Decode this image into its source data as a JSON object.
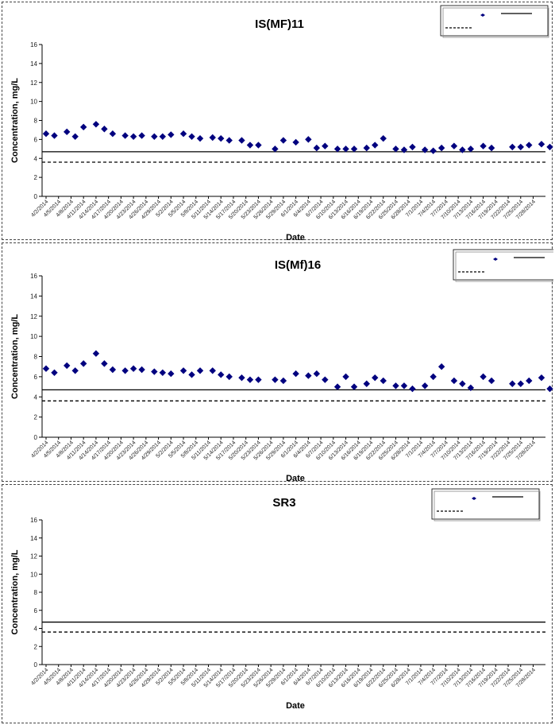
{
  "chart_data": [
    {
      "type": "scatter",
      "title": "IS(MF)11",
      "xlabel": "Date",
      "ylabel": "Concentration, mg/L",
      "ylim": [
        0,
        16
      ],
      "yticks": [
        "0",
        "2",
        "4",
        "6",
        "8",
        "10",
        "12",
        "14",
        "16"
      ],
      "xticks": [
        "4/2/2014",
        "4/5/2014",
        "4/8/2014",
        "4/11/2014",
        "4/14/2014",
        "4/17/2014",
        "4/20/2014",
        "4/23/2014",
        "4/26/2014",
        "4/29/2014",
        "5/2/2014",
        "5/5/2014",
        "5/8/2014",
        "5/11/2014",
        "5/14/2014",
        "5/17/2014",
        "5/20/2014",
        "5/23/2014",
        "5/26/2014",
        "5/29/2014",
        "6/1/2014",
        "6/4/2014",
        "6/7/2014",
        "6/10/2014",
        "6/13/2014",
        "6/16/2014",
        "6/19/2014",
        "6/22/2014",
        "6/25/2014",
        "6/28/2014",
        "7/1/2014",
        "7/4/2014",
        "7/7/2014",
        "7/10/2014",
        "7/13/2014",
        "7/16/2014",
        "7/19/2014",
        "7/22/2014",
        "7/25/2014",
        "7/28/2014"
      ],
      "grid": false,
      "legend_position": "top-right",
      "marker_color": "#00007F",
      "reference_lines": [
        {
          "style": "solid",
          "value": 4.7
        },
        {
          "style": "dashed",
          "value": 3.6
        }
      ],
      "points": [
        {
          "x": "4/2/2014",
          "y": 6.6
        },
        {
          "x": "4/4/2014",
          "y": 6.4
        },
        {
          "x": "4/7/2014",
          "y": 6.8
        },
        {
          "x": "4/9/2014",
          "y": 6.3
        },
        {
          "x": "4/11/2014",
          "y": 7.3
        },
        {
          "x": "4/14/2014",
          "y": 7.6
        },
        {
          "x": "4/16/2014",
          "y": 7.1
        },
        {
          "x": "4/18/2014",
          "y": 6.6
        },
        {
          "x": "4/21/2014",
          "y": 6.4
        },
        {
          "x": "4/23/2014",
          "y": 6.3
        },
        {
          "x": "4/25/2014",
          "y": 6.4
        },
        {
          "x": "4/28/2014",
          "y": 6.3
        },
        {
          "x": "4/30/2014",
          "y": 6.3
        },
        {
          "x": "5/2/2014",
          "y": 6.5
        },
        {
          "x": "5/5/2014",
          "y": 6.6
        },
        {
          "x": "5/7/2014",
          "y": 6.3
        },
        {
          "x": "5/9/2014",
          "y": 6.1
        },
        {
          "x": "5/12/2014",
          "y": 6.2
        },
        {
          "x": "5/14/2014",
          "y": 6.1
        },
        {
          "x": "5/16/2014",
          "y": 5.9
        },
        {
          "x": "5/19/2014",
          "y": 5.9
        },
        {
          "x": "5/21/2014",
          "y": 5.4
        },
        {
          "x": "5/23/2014",
          "y": 5.4
        },
        {
          "x": "5/27/2014",
          "y": 5.0
        },
        {
          "x": "5/29/2014",
          "y": 5.9
        },
        {
          "x": "6/1/2014",
          "y": 5.7
        },
        {
          "x": "6/4/2014",
          "y": 6.0
        },
        {
          "x": "6/6/2014",
          "y": 5.1
        },
        {
          "x": "6/8/2014",
          "y": 5.3
        },
        {
          "x": "6/11/2014",
          "y": 5.0
        },
        {
          "x": "6/13/2014",
          "y": 5.0
        },
        {
          "x": "6/15/2014",
          "y": 5.0
        },
        {
          "x": "6/18/2014",
          "y": 5.1
        },
        {
          "x": "6/20/2014",
          "y": 5.4
        },
        {
          "x": "6/22/2014",
          "y": 6.1
        },
        {
          "x": "6/25/2014",
          "y": 5.0
        },
        {
          "x": "6/27/2014",
          "y": 4.9
        },
        {
          "x": "6/29/2014",
          "y": 5.2
        },
        {
          "x": "7/2/2014",
          "y": 4.9
        },
        {
          "x": "7/4/2014",
          "y": 4.8
        },
        {
          "x": "7/6/2014",
          "y": 5.1
        },
        {
          "x": "7/9/2014",
          "y": 5.3
        },
        {
          "x": "7/11/2014",
          "y": 4.9
        },
        {
          "x": "7/13/2014",
          "y": 5.0
        },
        {
          "x": "7/16/2014",
          "y": 5.3
        },
        {
          "x": "7/18/2014",
          "y": 5.1
        },
        {
          "x": "7/23/2014",
          "y": 5.2
        },
        {
          "x": "7/25/2014",
          "y": 5.2
        },
        {
          "x": "7/27/2014",
          "y": 5.4
        },
        {
          "x": "7/30/2014",
          "y": 5.5
        },
        {
          "x": "8/1/2014",
          "y": 5.2
        }
      ]
    },
    {
      "type": "scatter",
      "title": "IS(Mf)16",
      "xlabel": "Date",
      "ylabel": "Concentration, mg/L",
      "ylim": [
        0,
        16
      ],
      "yticks": [
        "0",
        "2",
        "4",
        "6",
        "8",
        "10",
        "12",
        "14",
        "16"
      ],
      "xticks": [
        "4/2/2014",
        "4/5/2014",
        "4/8/2014",
        "4/11/2014",
        "4/14/2014",
        "4/17/2014",
        "4/20/2014",
        "4/23/2014",
        "4/26/2014",
        "4/29/2014",
        "5/2/2014",
        "5/5/2014",
        "5/8/2014",
        "5/11/2014",
        "5/14/2014",
        "5/17/2014",
        "5/20/2014",
        "5/23/2014",
        "5/26/2014",
        "5/29/2014",
        "6/1/2014",
        "6/4/2014",
        "6/7/2014",
        "6/10/2014",
        "6/13/2014",
        "6/16/2014",
        "6/19/2014",
        "6/22/2014",
        "6/25/2014",
        "6/28/2014",
        "7/1/2014",
        "7/4/2014",
        "7/7/2014",
        "7/10/2014",
        "7/13/2014",
        "7/16/2014",
        "7/19/2014",
        "7/22/2014",
        "7/25/2014",
        "7/28/2014"
      ],
      "grid": false,
      "legend_position": "top-right",
      "marker_color": "#00007F",
      "reference_lines": [
        {
          "style": "solid",
          "value": 4.7
        },
        {
          "style": "dashed",
          "value": 3.6
        }
      ],
      "points": [
        {
          "x": "4/2/2014",
          "y": 6.8
        },
        {
          "x": "4/4/2014",
          "y": 6.4
        },
        {
          "x": "4/7/2014",
          "y": 7.1
        },
        {
          "x": "4/9/2014",
          "y": 6.6
        },
        {
          "x": "4/11/2014",
          "y": 7.3
        },
        {
          "x": "4/14/2014",
          "y": 8.3
        },
        {
          "x": "4/16/2014",
          "y": 7.3
        },
        {
          "x": "4/18/2014",
          "y": 6.7
        },
        {
          "x": "4/21/2014",
          "y": 6.6
        },
        {
          "x": "4/23/2014",
          "y": 6.8
        },
        {
          "x": "4/25/2014",
          "y": 6.7
        },
        {
          "x": "4/28/2014",
          "y": 6.5
        },
        {
          "x": "4/30/2014",
          "y": 6.4
        },
        {
          "x": "5/2/2014",
          "y": 6.3
        },
        {
          "x": "5/5/2014",
          "y": 6.6
        },
        {
          "x": "5/7/2014",
          "y": 6.2
        },
        {
          "x": "5/9/2014",
          "y": 6.6
        },
        {
          "x": "5/12/2014",
          "y": 6.6
        },
        {
          "x": "5/14/2014",
          "y": 6.2
        },
        {
          "x": "5/16/2014",
          "y": 6.0
        },
        {
          "x": "5/19/2014",
          "y": 5.9
        },
        {
          "x": "5/21/2014",
          "y": 5.7
        },
        {
          "x": "5/23/2014",
          "y": 5.7
        },
        {
          "x": "5/27/2014",
          "y": 5.7
        },
        {
          "x": "5/29/2014",
          "y": 5.6
        },
        {
          "x": "6/1/2014",
          "y": 6.3
        },
        {
          "x": "6/4/2014",
          "y": 6.1
        },
        {
          "x": "6/6/2014",
          "y": 6.3
        },
        {
          "x": "6/8/2014",
          "y": 5.7
        },
        {
          "x": "6/11/2014",
          "y": 5.0
        },
        {
          "x": "6/13/2014",
          "y": 6.0
        },
        {
          "x": "6/15/2014",
          "y": 5.0
        },
        {
          "x": "6/18/2014",
          "y": 5.3
        },
        {
          "x": "6/20/2014",
          "y": 5.9
        },
        {
          "x": "6/22/2014",
          "y": 5.6
        },
        {
          "x": "6/25/2014",
          "y": 5.1
        },
        {
          "x": "6/27/2014",
          "y": 5.1
        },
        {
          "x": "6/29/2014",
          "y": 4.8
        },
        {
          "x": "7/2/2014",
          "y": 5.1
        },
        {
          "x": "7/4/2014",
          "y": 6.0
        },
        {
          "x": "7/6/2014",
          "y": 7.0
        },
        {
          "x": "7/9/2014",
          "y": 5.6
        },
        {
          "x": "7/11/2014",
          "y": 5.3
        },
        {
          "x": "7/13/2014",
          "y": 4.9
        },
        {
          "x": "7/16/2014",
          "y": 6.0
        },
        {
          "x": "7/18/2014",
          "y": 5.6
        },
        {
          "x": "7/23/2014",
          "y": 5.3
        },
        {
          "x": "7/25/2014",
          "y": 5.3
        },
        {
          "x": "7/27/2014",
          "y": 5.6
        },
        {
          "x": "7/30/2014",
          "y": 5.9
        },
        {
          "x": "8/1/2014",
          "y": 4.8
        }
      ]
    },
    {
      "type": "scatter",
      "title": "SR3",
      "xlabel": "Date",
      "ylabel": "Concentration, mg/L",
      "ylim": [
        0,
        16
      ],
      "yticks": [
        "0",
        "2",
        "4",
        "6",
        "8",
        "10",
        "12",
        "14",
        "16"
      ],
      "xticks": [
        "4/2/2014",
        "4/5/2014",
        "4/8/2014",
        "4/11/2014",
        "4/14/2014",
        "4/17/2014",
        "4/20/2014",
        "4/23/2014",
        "4/26/2014",
        "4/29/2014",
        "5/2/2014",
        "5/5/2014",
        "5/8/2014",
        "5/11/2014",
        "5/14/2014",
        "5/17/2014",
        "5/20/2014",
        "5/23/2014",
        "5/26/2014",
        "5/29/2014",
        "6/1/2014",
        "6/4/2014",
        "6/7/2014",
        "6/10/2014",
        "6/13/2014",
        "6/16/2014",
        "6/19/2014",
        "6/22/2014",
        "6/25/2014",
        "6/28/2014",
        "7/1/2014",
        "7/4/2014",
        "7/7/2014",
        "7/10/2014",
        "7/13/2014",
        "7/16/2014",
        "7/19/2014",
        "7/22/2014",
        "7/25/2014",
        "7/28/2014"
      ],
      "grid": false,
      "legend_position": "top-right",
      "marker_color": "#00007F",
      "reference_lines": [
        {
          "style": "solid",
          "value": 4.7
        },
        {
          "style": "dashed",
          "value": 3.6
        }
      ],
      "points": []
    }
  ]
}
